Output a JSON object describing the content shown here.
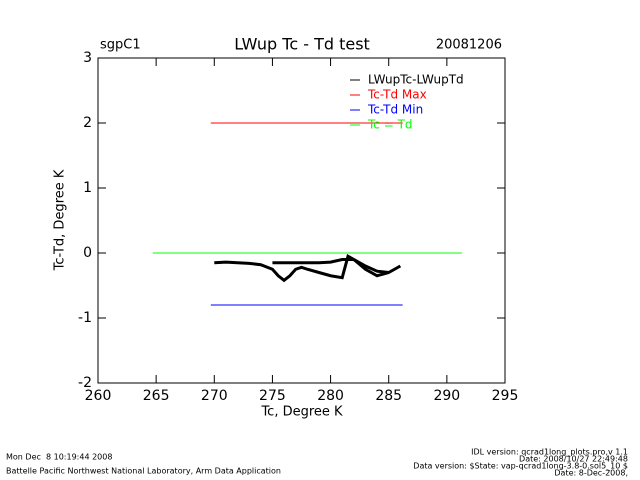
{
  "chart_data": {
    "type": "line",
    "title": "LWup Tc - Td test",
    "annotations": {
      "site": "sgpC1",
      "date": "20081206"
    },
    "xlabel": "Tc, Degree K",
    "ylabel": "Tc-Td, Degree K",
    "xlim": [
      260,
      295
    ],
    "xticks": [
      260,
      265,
      270,
      275,
      280,
      285,
      290,
      295
    ],
    "ylim": [
      -2,
      3
    ],
    "yticks": [
      -2,
      -1,
      0,
      1,
      2,
      3
    ],
    "legend": "top-right",
    "series": [
      {
        "name": "LWupTc-LWupTd",
        "color": "#000000",
        "x": [
          270,
          271,
          272,
          273,
          274,
          275,
          275.5,
          276,
          276.5,
          277,
          277.5,
          278,
          279,
          280,
          281,
          281.5,
          282,
          283,
          284,
          285,
          286,
          285,
          284,
          283,
          282,
          281,
          280,
          279,
          278,
          277,
          276,
          275
        ],
        "values": [
          -0.15,
          -0.14,
          -0.15,
          -0.16,
          -0.18,
          -0.25,
          -0.35,
          -0.42,
          -0.35,
          -0.25,
          -0.22,
          -0.25,
          -0.3,
          -0.35,
          -0.38,
          -0.05,
          -0.1,
          -0.25,
          -0.35,
          -0.3,
          -0.2,
          -0.3,
          -0.28,
          -0.2,
          -0.1,
          -0.1,
          -0.14,
          -0.15,
          -0.15,
          -0.15,
          -0.15,
          -0.15
        ]
      },
      {
        "name": "Tc-Td Max",
        "color": "#ff0000",
        "x": [
          269.7,
          286.2
        ],
        "values": [
          2,
          2
        ]
      },
      {
        "name": "Tc-Td Min",
        "color": "#0000ff",
        "x": [
          269.7,
          286.2
        ],
        "values": [
          -0.8,
          -0.8
        ]
      },
      {
        "name": "Tc = Td",
        "color": "#00ff00",
        "x": [
          264.7,
          291.3
        ],
        "values": [
          0,
          0
        ]
      }
    ]
  },
  "footer": {
    "left": [
      "Mon Dec  8 10:19:44 2008",
      "Battelle Pacific Northwest National Laboratory, Arm Data Application"
    ],
    "right": [
      "IDL version: qcrad1long_plots.pro,v 1.1",
      "Date: 2008/10/27 22:49:48",
      "Data version: $State: vap-qcrad1long-3.8-0.sol5_10 $",
      "Date: 8-Dec-2008,"
    ]
  }
}
